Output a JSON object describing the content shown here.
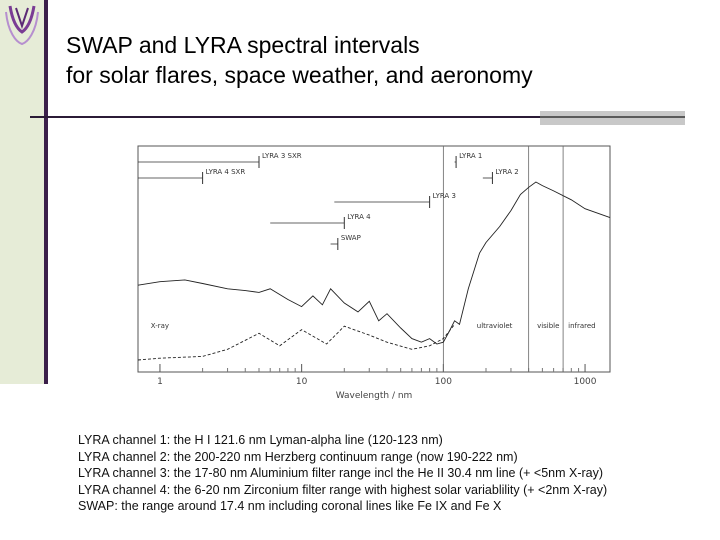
{
  "slide": {
    "title_line1": "SWAP and LYRA spectral intervals",
    "title_line2": "for solar flares, space weather, and aeronomy"
  },
  "chart_data": {
    "type": "line",
    "xscale": "log",
    "xlim": [
      0.7,
      1500
    ],
    "x_ticks": [
      1,
      10,
      100,
      1000
    ],
    "x_tick_labels": [
      "1",
      "10",
      "100",
      "1000"
    ],
    "xlabel": "Wavelength / nm",
    "ylabel": "",
    "intervals": [
      {
        "name": "LYRA 3 SXR",
        "range": [
          0.1,
          5
        ]
      },
      {
        "name": "LYRA 1",
        "range": [
          120,
          123
        ]
      },
      {
        "name": "LYRA 4 SXR",
        "range": [
          0.1,
          2
        ]
      },
      {
        "name": "LYRA 2",
        "range": [
          190,
          222
        ]
      },
      {
        "name": "LYRA 3",
        "range": [
          17,
          80
        ]
      },
      {
        "name": "LYRA 4",
        "range": [
          6,
          20
        ]
      },
      {
        "name": "SWAP",
        "range": [
          16,
          18
        ]
      }
    ],
    "region_labels": [
      "X-ray",
      "ultraviolet",
      "visible",
      "infrared"
    ],
    "region_boundaries": [
      100,
      400,
      700
    ],
    "series": [
      {
        "style": "solid",
        "x": [
          0.7,
          1,
          1.5,
          2,
          3,
          4,
          5,
          6,
          8,
          10,
          12,
          14,
          16,
          20,
          25,
          30,
          35,
          40,
          50,
          60,
          70,
          80,
          90,
          100,
          110,
          120,
          130,
          150,
          180,
          200,
          250,
          300,
          350,
          400,
          450,
          500,
          600,
          800,
          1000,
          1500
        ],
        "y": [
          0.42,
          0.44,
          0.45,
          0.43,
          0.4,
          0.39,
          0.38,
          0.4,
          0.34,
          0.3,
          0.36,
          0.31,
          0.4,
          0.32,
          0.27,
          0.33,
          0.22,
          0.26,
          0.18,
          0.12,
          0.1,
          0.12,
          0.09,
          0.1,
          0.16,
          0.22,
          0.2,
          0.4,
          0.6,
          0.66,
          0.75,
          0.84,
          0.93,
          0.97,
          1.0,
          0.98,
          0.95,
          0.9,
          0.85,
          0.8
        ]
      },
      {
        "style": "dashed",
        "x": [
          0.7,
          1,
          2,
          3,
          5,
          7,
          10,
          15,
          20,
          30,
          40,
          60,
          80,
          100,
          120
        ],
        "y": [
          0.0,
          0.01,
          0.02,
          0.06,
          0.15,
          0.08,
          0.17,
          0.09,
          0.19,
          0.14,
          0.1,
          0.06,
          0.08,
          0.12,
          0.2
        ]
      }
    ]
  },
  "notes": [
    "LYRA channel 1: the H I 121.6 nm Lyman-alpha line (120-123 nm)",
    "LYRA channel 2: the 200-220 nm Herzberg continuum range (now 190-222 nm)",
    "LYRA channel 3: the 17-80 nm Aluminium filter range incl the He II 30.4 nm line (+ <5nm X-ray)",
    "LYRA channel 4: the 6-20 nm Zirconium filter range with highest solar variablility (+ <2nm X-ray)",
    "SWAP: the range around 17.4 nm including coronal lines like Fe IX and Fe X"
  ]
}
